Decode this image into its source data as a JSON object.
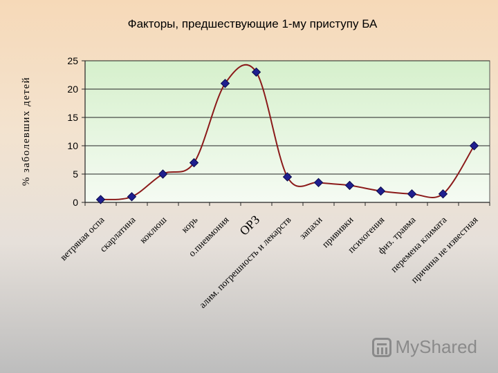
{
  "chart_data": {
    "type": "line",
    "title": "Факторы, предшествующие 1-му приступу БА",
    "ylabel": "% заболевших детей",
    "xlabel": "",
    "ylim": [
      0,
      25
    ],
    "yticks": [
      0,
      5,
      10,
      15,
      20,
      25
    ],
    "grid": true,
    "legend": "none",
    "categories": [
      "ветряная оспа",
      "скарлатина",
      "коклюш",
      "корь",
      "о.пневмония",
      "ОРЗ",
      "алим. погрешность и лекарств",
      "запахи",
      "прививки",
      "психогения",
      "физ. травма",
      "перемена климата",
      "причина не известная"
    ],
    "series": [
      {
        "values": [
          0.5,
          1,
          5,
          7,
          21,
          23,
          4.5,
          3.5,
          3,
          2,
          1.5,
          1.5,
          10
        ]
      }
    ],
    "colors": {
      "line": "#8b1a1a",
      "marker": "#1f1f8f",
      "plot_bg_top": "#d8f0cf",
      "plot_bg_bottom": "#f4fbf2"
    }
  },
  "watermark": {
    "text": "MyShared",
    "icon": "myshared-logo-icon"
  }
}
